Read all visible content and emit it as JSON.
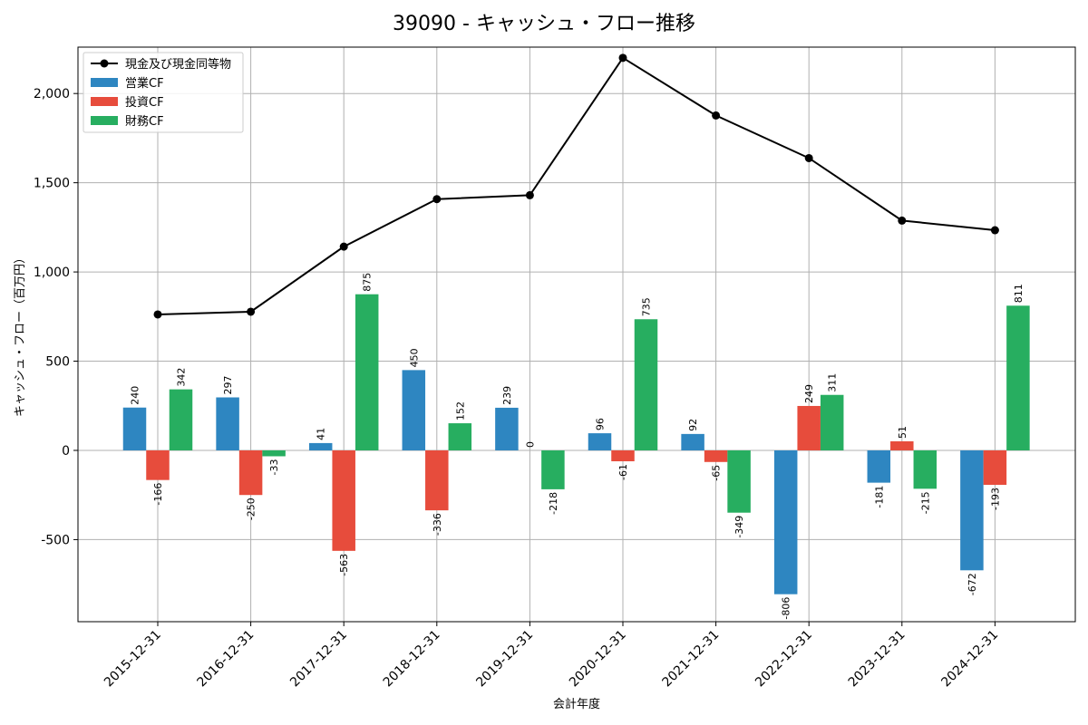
{
  "chart_data": {
    "type": "bar",
    "title": "39090 - キャッシュ・フロー推移",
    "xlabel": "会計年度",
    "ylabel": "キャッシュ・フロー（百万円）",
    "categories": [
      "2015-12-31",
      "2016-12-31",
      "2017-12-31",
      "2018-12-31",
      "2019-12-31",
      "2020-12-31",
      "2021-12-31",
      "2022-12-31",
      "2023-12-31",
      "2024-12-31"
    ],
    "ylim": [
      -960,
      2260
    ],
    "yticks": [
      -500,
      0,
      500,
      1000,
      1500,
      2000
    ],
    "ytick_labels": [
      "-500",
      "0",
      "500",
      "1,000",
      "1,500",
      "2,000"
    ],
    "grid": true,
    "legend_position": "top-left",
    "line_series": {
      "name": "現金及び現金同等物",
      "color": "#000000",
      "values": [
        762,
        777,
        1142,
        1408,
        1430,
        2200,
        1877,
        1638,
        1288,
        1234
      ]
    },
    "series": [
      {
        "name": "営業CF",
        "color": "#2e86c1",
        "values": [
          240,
          297,
          41,
          450,
          239,
          96,
          92,
          -806,
          -181,
          -672
        ],
        "labels": [
          "240",
          "297",
          "41",
          "450",
          "239",
          "96",
          "92",
          "-806",
          "-181",
          "-672"
        ]
      },
      {
        "name": "投資CF",
        "color": "#e74c3c",
        "values": [
          -166,
          -250,
          -563,
          -336,
          0,
          -61,
          -65,
          249,
          51,
          -193
        ],
        "labels": [
          "-166",
          "-250",
          "-563",
          "-336",
          "0",
          "-61",
          "-65",
          "249",
          "51",
          "-193"
        ]
      },
      {
        "name": "財務CF",
        "color": "#27ae60",
        "values": [
          342,
          -33,
          875,
          152,
          -218,
          735,
          -349,
          311,
          -215,
          811
        ],
        "labels": [
          "342",
          "-33",
          "875",
          "152",
          "-218",
          "735",
          "-349",
          "311",
          "-215",
          "811"
        ]
      }
    ]
  }
}
